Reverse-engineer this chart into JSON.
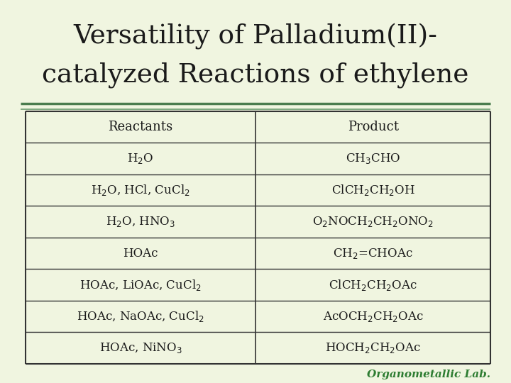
{
  "title_line1": "Versatility of Palladium(II)-",
  "title_line2": "catalyzed Reactions of ethylene",
  "bg_color": "#f0f5e0",
  "title_color": "#1a1a1a",
  "table_header": [
    "Reactants",
    "Product"
  ],
  "rows": [
    [
      "H$_2$O",
      "CH$_3$CHO"
    ],
    [
      "H$_2$O, HCl, CuCl$_2$",
      "ClCH$_2$CH$_2$OH"
    ],
    [
      "H$_2$O, HNO$_3$",
      "O$_2$NOCH$_2$CH$_2$ONO$_2$"
    ],
    [
      "HOAc",
      "CH$_2$=CHOAc"
    ],
    [
      "HOAc, LiOAc, CuCl$_2$",
      "ClCH$_2$CH$_2$OAc"
    ],
    [
      "HOAc, NaOAc, CuCl$_2$",
      "AcOCH$_2$CH$_2$OAc"
    ],
    [
      "HOAc, NiNO$_3$",
      "HOCH$_2$CH$_2$OAc"
    ]
  ],
  "footer_text": "Organometallic Lab.",
  "footer_color": "#2e7d32",
  "line_color_thick": "#4a7c4e",
  "line_color_thin": "#6a9c6e",
  "table_border_color": "#333333",
  "text_color": "#1a1a1a",
  "header_font_size": 13,
  "row_font_size": 12,
  "title_font_size": 27
}
